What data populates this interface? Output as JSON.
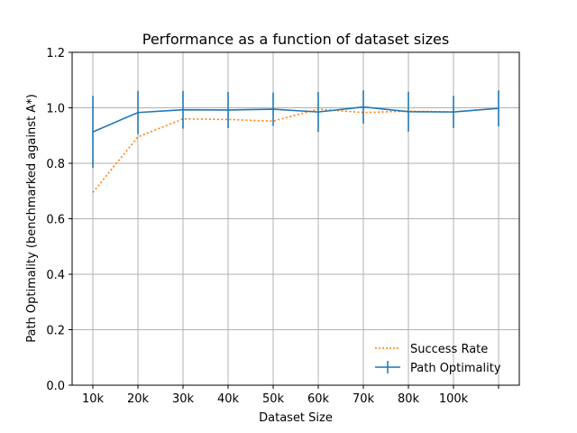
{
  "chart_data": {
    "type": "line",
    "title": "Performance as a function of dataset sizes",
    "xlabel": "Dataset Size",
    "ylabel": "Path Optimality (benchmarked against A*)",
    "x_tick_labels": [
      "10k",
      "20k",
      "30k",
      "40k",
      "50k",
      "60k",
      "70k",
      "80k",
      "100k",
      ""
    ],
    "y_ticks": [
      "0.0",
      "0.2",
      "0.4",
      "0.6",
      "0.8",
      "1.0",
      "1.2"
    ],
    "ylim": [
      0.0,
      1.2
    ],
    "grid": true,
    "legend_position": "lower-right",
    "series": [
      {
        "name": "Success Rate",
        "style": "dotted",
        "color": "#ff7f0e",
        "values": [
          0.695,
          0.895,
          0.96,
          0.958,
          0.952,
          0.995,
          0.983,
          0.988,
          0.985,
          0.998
        ]
      },
      {
        "name": "Path Optimality",
        "style": "solid-errorbar",
        "color": "#1f77b4",
        "values": [
          0.913,
          0.983,
          0.993,
          0.992,
          0.995,
          0.985,
          1.003,
          0.986,
          0.985,
          0.998
        ],
        "errors": [
          0.13,
          0.078,
          0.068,
          0.065,
          0.06,
          0.072,
          0.06,
          0.072,
          0.058,
          0.065
        ]
      }
    ]
  }
}
